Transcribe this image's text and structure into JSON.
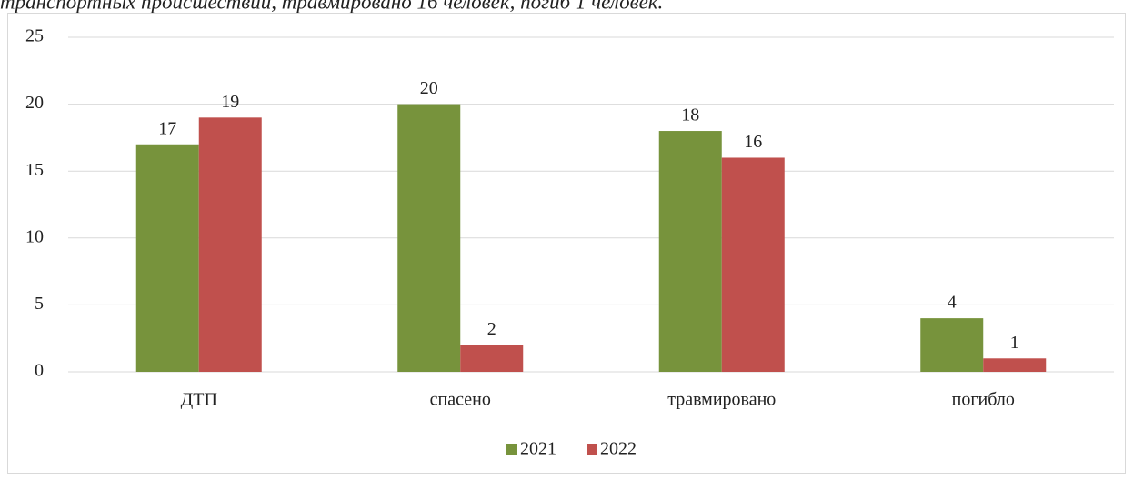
{
  "caption": "транспортных происшествий, травмировано 16 человек, погиб 1 человек.",
  "chart_data": {
    "type": "bar",
    "categories": [
      "ДТП",
      "спасено",
      "травмировано",
      "погибло"
    ],
    "series": [
      {
        "name": "2021",
        "color": "#77933c",
        "values": [
          17,
          20,
          18,
          4
        ]
      },
      {
        "name": "2022",
        "color": "#c0504d",
        "values": [
          19,
          2,
          16,
          1
        ]
      }
    ],
    "ylim": [
      0,
      25
    ],
    "yticks": [
      0,
      5,
      10,
      15,
      20,
      25
    ],
    "grid": true,
    "legend": "bottom"
  }
}
